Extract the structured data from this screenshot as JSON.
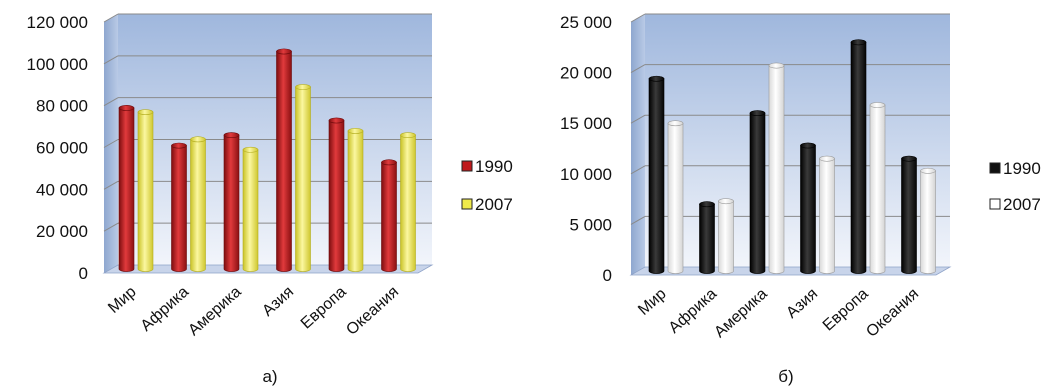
{
  "chart_data": [
    {
      "type": "bar",
      "caption": "а)",
      "categories": [
        "Мир",
        "Африка",
        "Америка",
        "Азия",
        "Европа",
        "Океания"
      ],
      "series": [
        {
          "name": "1990",
          "color": "#c0191c",
          "values": [
            77000,
            59000,
            64000,
            104000,
            71000,
            51000
          ]
        },
        {
          "name": "2007",
          "color": "#f0ea4a",
          "values": [
            75000,
            62000,
            57000,
            87000,
            66000,
            64000
          ]
        }
      ],
      "yticks": [
        "0",
        "20 000",
        "40 000",
        "60 000",
        "80 000",
        "100 000",
        "120 000"
      ],
      "ylim": [
        0,
        120000
      ],
      "legend": "right",
      "grid": true
    },
    {
      "type": "bar",
      "caption": "б)",
      "categories": [
        "Мир",
        "Африка",
        "Америка",
        "Азия",
        "Европа",
        "Океания"
      ],
      "series": [
        {
          "name": "1990",
          "color": "#111111",
          "values": [
            19000,
            6600,
            15600,
            12400,
            22600,
            11100
          ]
        },
        {
          "name": "2007",
          "color": "#ffffff",
          "values": [
            14600,
            6900,
            20300,
            11100,
            16400,
            9900
          ]
        }
      ],
      "yticks": [
        "0",
        "5 000",
        "10 000",
        "15 000",
        "20 000",
        "25 000"
      ],
      "ylim": [
        0,
        25000
      ],
      "legend": "right",
      "grid": true
    }
  ]
}
